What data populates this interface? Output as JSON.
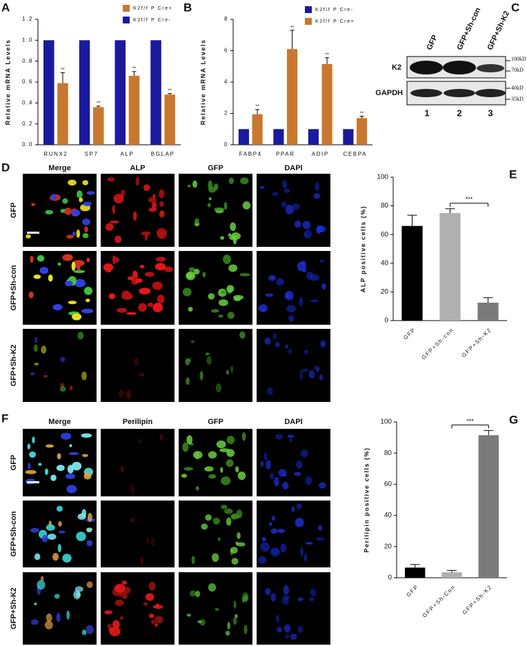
{
  "chart_data": [
    {
      "panel": "A",
      "type": "bar",
      "ylabel": "Relative mRNA Levels",
      "categories": [
        "RUNX2",
        "SP7",
        "ALP",
        "BGLAP"
      ],
      "series": [
        {
          "name": "K2f/f P Cre+",
          "color": "#c8782e",
          "values": [
            0.59,
            0.36,
            0.66,
            0.48
          ],
          "errors": [
            0.1,
            0.01,
            0.04,
            0.01
          ],
          "value_annotations": [
            "**",
            "**",
            "**",
            "**"
          ]
        },
        {
          "name": "K2f/f P Cre-",
          "color": "#1a1a9e",
          "values": [
            1,
            1,
            1,
            1
          ]
        }
      ],
      "ylim": [
        0,
        1.2
      ],
      "yticks": [
        {
          "value": 0,
          "label": "0.0"
        },
        0.2,
        0.4,
        0.6,
        0.8,
        {
          "value": 1,
          "label": "1.0"
        },
        1.2
      ]
    },
    {
      "panel": "B",
      "type": "bar",
      "ylabel": "Relative mRNA Levels",
      "categories": [
        "FABP4",
        "PPAR",
        "ADIP",
        "CEBPA"
      ],
      "series": [
        {
          "name": "K2f/f P Cre-",
          "color": "#1a1a9e",
          "values": [
            1,
            1,
            1,
            1
          ]
        },
        {
          "name": "K2f/f P Cre+",
          "color": "#c8782e",
          "values": [
            1.95,
            6.1,
            5.15,
            1.7
          ],
          "errors": [
            0.3,
            1.2,
            0.4,
            0.12
          ],
          "value_annotations": [
            "**",
            "**",
            "**",
            "**"
          ]
        }
      ],
      "ylim": [
        0,
        8
      ],
      "yticks": [
        0,
        2,
        4,
        6,
        8
      ]
    },
    {
      "panel": "E",
      "type": "bar",
      "ylabel": "ALP positive cells (%)",
      "categories": [
        "GFP",
        "GFP+Sh-con",
        "GFP+Sh-K2"
      ],
      "values": [
        66,
        75,
        12.5
      ],
      "errors": [
        7.5,
        3,
        3.5
      ],
      "colors": [
        "#000000",
        "#b0b0b0",
        "#7a7a7a"
      ],
      "bracket": {
        "text": "***",
        "between": [
          "GFP+Sh-con",
          "GFP+Sh-K2"
        ]
      },
      "ylim": [
        0,
        100
      ],
      "yticks": [
        0,
        20,
        40,
        60,
        80,
        100
      ]
    },
    {
      "panel": "G",
      "type": "bar",
      "ylabel": "Perilipin positive cells (%)",
      "categories": [
        "GFP",
        "GFP+Sh-Con",
        "GFP+Sh-K2"
      ],
      "values": [
        6.5,
        3.5,
        91.5
      ],
      "errors": [
        2,
        1.2,
        3
      ],
      "colors": [
        "#000000",
        "#b0b0b0",
        "#7a7a7a"
      ],
      "bracket": {
        "text": "***",
        "between": [
          "GFP+Sh-Con",
          "GFP+Sh-K2"
        ]
      },
      "ylim": [
        0,
        100
      ],
      "yticks": [
        0,
        20,
        40,
        60,
        80,
        100
      ]
    }
  ],
  "blot": {
    "panel": "C",
    "lanes": [
      "GFP",
      "GFP+Sh-con",
      "GFP+Sh-K2"
    ],
    "lane_numbers": [
      "1",
      "2",
      "3"
    ],
    "rows": [
      "K2",
      "GAPDH"
    ],
    "markers": [
      "100kD",
      "70kD",
      "40kD",
      "35kD"
    ]
  },
  "panel_d": {
    "panel": "D",
    "columns": [
      "Merge",
      "ALP",
      "GFP",
      "DAPI"
    ],
    "rows": [
      "GFP",
      "GFP+Sh-con",
      "GFP+Sh-K2"
    ]
  },
  "panel_f": {
    "panel": "F",
    "columns": [
      "Merge",
      "Perilipin",
      "GFP",
      "DAPI"
    ],
    "rows": [
      "GFP",
      "GFP+Sh-con",
      "GFP+Sh-K2"
    ]
  }
}
